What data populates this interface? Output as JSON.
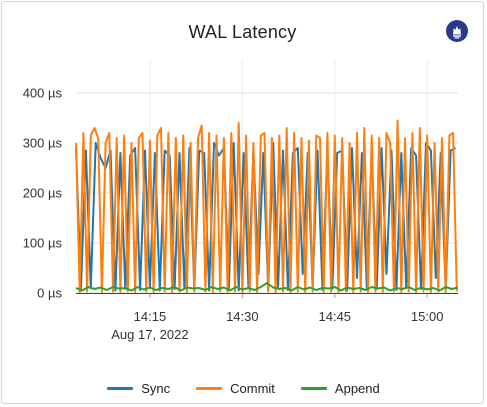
{
  "panel": {
    "title": "WAL Latency",
    "logo_icon": "prometheus-logo-icon",
    "logo_color": "#2b3b8c"
  },
  "chart_data": {
    "type": "line",
    "title": "WAL Latency",
    "ylabel": "",
    "xlabel": "",
    "y_unit": "µs",
    "ylim": [
      0,
      420
    ],
    "y_ticks": [
      "0 µs",
      "100 µs",
      "200 µs",
      "300 µs",
      "400 µs"
    ],
    "y_tick_values": [
      0,
      100,
      200,
      300,
      400
    ],
    "x_ticks": [
      "14:15",
      "14:30",
      "14:45",
      "15:00"
    ],
    "x_tick_minutes": [
      15,
      30,
      45,
      60
    ],
    "x_date_label": "Aug 17, 2022",
    "xlim_minutes": [
      3,
      65
    ],
    "grid": true,
    "legend_position": "bottom",
    "series": [
      {
        "name": "Sync",
        "color": "#1f77b4",
        "x_minutes": [
          3.0,
          3.8,
          4.6,
          5.4,
          6.2,
          7.0,
          7.8,
          8.6,
          9.4,
          10.2,
          11.0,
          11.8,
          12.6,
          13.4,
          14.2,
          15.0,
          15.8,
          16.6,
          17.4,
          18.2,
          19.0,
          19.8,
          20.6,
          21.4,
          22.2,
          23.0,
          23.8,
          24.6,
          25.4,
          26.2,
          27.0,
          27.8,
          28.6,
          29.4,
          30.2,
          31.0,
          31.8,
          32.6,
          33.4,
          34.2,
          35.0,
          35.8,
          36.6,
          37.4,
          38.2,
          39.0,
          39.8,
          40.6,
          41.4,
          42.2,
          43.0,
          43.8,
          44.6,
          45.4,
          46.2,
          47.0,
          47.8,
          48.6,
          49.4,
          50.2,
          51.0,
          51.8,
          52.6,
          53.4,
          54.2,
          55.0,
          55.8,
          56.6,
          57.4,
          58.2,
          59.0,
          59.8,
          60.6,
          61.4,
          62.2,
          63.0,
          63.8,
          64.6
        ],
        "values": [
          290,
          5,
          285,
          10,
          300,
          270,
          250,
          285,
          5,
          280,
          8,
          275,
          290,
          6,
          285,
          10,
          280,
          5,
          285,
          275,
          8,
          280,
          10,
          290,
          6,
          285,
          280,
          5,
          300,
          275,
          290,
          8,
          300,
          5,
          280,
          10,
          285,
          38,
          280,
          5,
          300,
          12,
          285,
          6,
          280,
          290,
          38,
          280,
          10,
          285,
          6,
          290,
          8,
          280,
          285,
          5,
          290,
          30,
          280,
          10,
          285,
          8,
          290,
          38,
          285,
          6,
          280,
          10,
          290,
          275,
          8,
          300,
          285,
          30,
          280,
          6,
          285,
          290
        ]
      },
      {
        "name": "Commit",
        "color": "#ff7f0e",
        "x_minutes": [
          3.0,
          3.6,
          4.2,
          4.8,
          5.4,
          6.0,
          6.6,
          7.2,
          7.8,
          8.4,
          9.0,
          9.6,
          10.2,
          10.8,
          11.4,
          12.0,
          12.6,
          13.2,
          13.8,
          14.4,
          15.0,
          15.6,
          16.2,
          16.8,
          17.4,
          18.0,
          18.6,
          19.2,
          19.8,
          20.4,
          21.0,
          21.6,
          22.2,
          22.8,
          23.4,
          24.0,
          24.6,
          25.2,
          25.8,
          26.4,
          27.0,
          27.6,
          28.2,
          28.8,
          29.4,
          30.0,
          30.6,
          31.2,
          31.8,
          32.4,
          33.0,
          33.6,
          34.2,
          34.8,
          35.4,
          36.0,
          36.6,
          37.2,
          37.8,
          38.4,
          39.0,
          39.6,
          40.2,
          40.8,
          41.4,
          42.0,
          42.6,
          43.2,
          43.8,
          44.4,
          45.0,
          45.6,
          46.2,
          46.8,
          47.4,
          48.0,
          48.6,
          49.2,
          49.8,
          50.4,
          51.0,
          51.6,
          52.2,
          52.8,
          53.4,
          54.0,
          54.6,
          55.2,
          55.8,
          56.4,
          57.0,
          57.6,
          58.2,
          58.8,
          59.4,
          60.0,
          60.6,
          61.2,
          61.8,
          62.4,
          63.0,
          63.6,
          64.2,
          64.8
        ],
        "values": [
          300,
          2,
          320,
          3,
          315,
          330,
          310,
          2,
          300,
          320,
          3,
          310,
          2,
          315,
          3,
          300,
          2,
          310,
          320,
          3,
          305,
          2,
          315,
          330,
          3,
          320,
          2,
          310,
          3,
          315,
          2,
          300,
          3,
          310,
          335,
          3,
          320,
          2,
          315,
          3,
          310,
          2,
          320,
          3,
          340,
          2,
          315,
          3,
          300,
          2,
          315,
          320,
          3,
          310,
          2,
          315,
          3,
          330,
          2,
          320,
          3,
          310,
          2,
          305,
          3,
          315,
          310,
          2,
          320,
          3,
          315,
          2,
          310,
          3,
          300,
          2,
          320,
          3,
          330,
          2,
          315,
          3,
          310,
          2,
          320,
          300,
          3,
          345,
          2,
          310,
          3,
          320,
          2,
          330,
          3,
          315,
          2,
          300,
          3,
          310,
          2,
          315,
          320,
          3
        ]
      },
      {
        "name": "Append",
        "color": "#2ca02c",
        "x_minutes": [
          3,
          4,
          5,
          6,
          7,
          8,
          9,
          10,
          11,
          12,
          13,
          14,
          15,
          16,
          17,
          18,
          19,
          20,
          21,
          22,
          23,
          24,
          25,
          26,
          27,
          28,
          29,
          30,
          31,
          32,
          33,
          34,
          35,
          36,
          37,
          38,
          39,
          40,
          41,
          42,
          43,
          44,
          45,
          46,
          47,
          48,
          49,
          50,
          51,
          52,
          53,
          54,
          55,
          56,
          57,
          58,
          59,
          60,
          61,
          62,
          63,
          64,
          65
        ],
        "values": [
          10,
          5,
          12,
          8,
          11,
          6,
          12,
          9,
          10,
          5,
          12,
          7,
          11,
          6,
          10,
          8,
          12,
          5,
          11,
          9,
          10,
          6,
          12,
          8,
          11,
          5,
          12,
          7,
          10,
          6,
          12,
          20,
          11,
          8,
          10,
          5,
          12,
          7,
          11,
          6,
          10,
          9,
          12,
          5,
          11,
          8,
          10,
          6,
          12,
          9,
          11,
          5,
          10,
          8,
          12,
          6,
          11,
          7,
          10,
          5,
          12,
          8,
          11
        ]
      }
    ]
  }
}
